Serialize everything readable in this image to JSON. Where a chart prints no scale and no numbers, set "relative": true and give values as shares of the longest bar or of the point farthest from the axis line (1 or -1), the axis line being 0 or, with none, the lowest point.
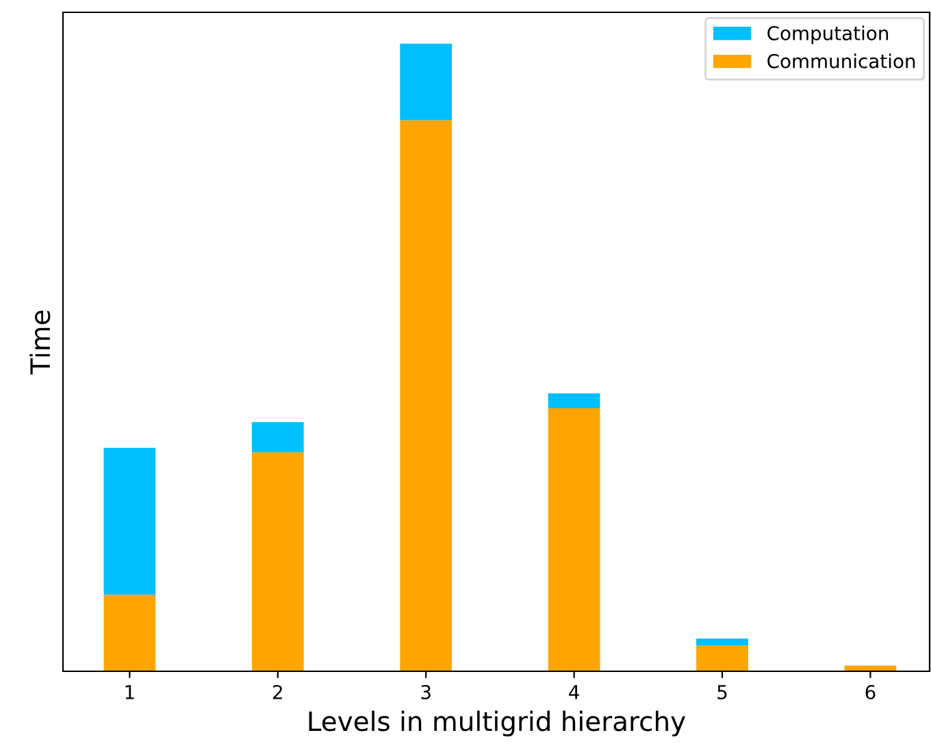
{
  "chart_data": {
    "type": "bar",
    "xlabel": "Levels in multigrid hierarchy",
    "ylabel": "Time",
    "categories": [
      "1",
      "2",
      "3",
      "4",
      "5",
      "6"
    ],
    "stacked": true,
    "relative": true,
    "legend": "top right",
    "grid": false,
    "series": [
      {
        "name": "Communication",
        "color": "#ffa500",
        "values": [
          0.122,
          0.349,
          0.878,
          0.419,
          0.041,
          0.009
        ]
      },
      {
        "name": "Computation",
        "color": "#00bfff",
        "values": [
          0.234,
          0.048,
          0.122,
          0.024,
          0.011,
          0.0
        ]
      }
    ]
  }
}
